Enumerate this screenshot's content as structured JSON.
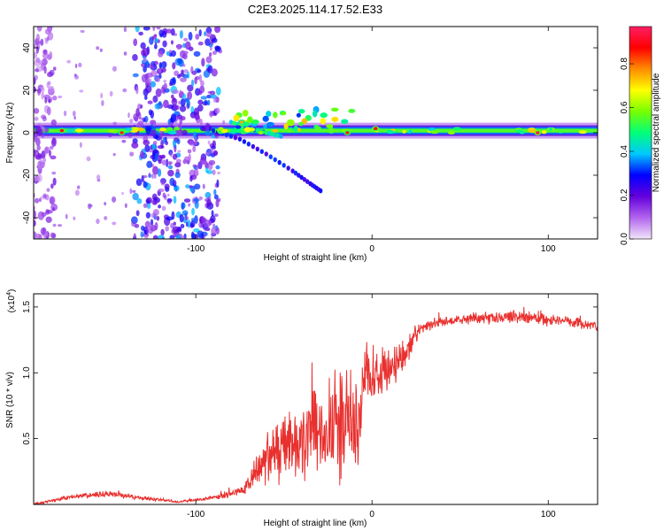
{
  "title": "C2E3.2025.114.17.52.E33",
  "chart_data": [
    {
      "type": "heatmap",
      "xlabel": "Height of straight line (km)",
      "ylabel": "Frequency (Hz)",
      "xlim": [
        -192,
        128
      ],
      "ylim": [
        -50,
        50
      ],
      "xticks": [
        -100,
        0,
        100
      ],
      "xtick_labels": [
        "-100",
        "0",
        "100"
      ],
      "yticks": [
        -40,
        -20,
        0,
        20,
        40
      ],
      "ytick_labels": [
        "-40",
        "-20",
        "0",
        "20",
        "40"
      ],
      "colorbar": {
        "label": "Normalized spectral amplitude",
        "range": [
          0,
          0.97
        ],
        "ticks": [
          0.0,
          0.2,
          0.4,
          0.6,
          0.8
        ],
        "tick_labels": [
          "0.0",
          "0.2",
          "0.4",
          "0.6",
          "0.8"
        ],
        "colors": [
          "#f2e6f9",
          "#b264ee",
          "#6400dc",
          "#0000ff",
          "#00c8ff",
          "#00ff78",
          "#78ff00",
          "#ffff00",
          "#ff8c00",
          "#ff0000",
          "#ff1e64"
        ]
      },
      "main_band": {
        "frequency": 1,
        "x_range": [
          -192,
          128
        ],
        "typical_amplitude": 0.55
      },
      "noise_regions": [
        {
          "x_range": [
            -192,
            -180
          ],
          "amplitude": 0.15
        },
        {
          "x_range": [
            -135,
            -87
          ],
          "amplitude": 0.3
        }
      ],
      "branch_curves": [
        {
          "points": [
            [
              -90,
              1
            ],
            [
              -75,
              -3
            ],
            [
              -60,
              -10
            ],
            [
              -45,
              -18
            ],
            [
              -35,
              -24
            ],
            [
              -28,
              -28
            ]
          ],
          "amplitude": 0.3
        },
        {
          "points": [
            [
              -80,
              5
            ],
            [
              -70,
              2
            ],
            [
              -60,
              0
            ],
            [
              -50,
              -2
            ]
          ],
          "amplitude": 0.45
        }
      ],
      "hot_spots": [
        {
          "x": -176,
          "y": 1,
          "amplitude": 0.9
        },
        {
          "x": -142,
          "y": 0,
          "amplitude": 0.85
        },
        {
          "x": -74,
          "y": 5,
          "amplitude": 0.75
        },
        {
          "x": -14,
          "y": 0,
          "amplitude": 0.85
        },
        {
          "x": 2,
          "y": 2,
          "amplitude": 0.9
        },
        {
          "x": 94,
          "y": 0,
          "amplitude": 0.95
        }
      ]
    },
    {
      "type": "line",
      "xlabel": "Height of straight line (km)",
      "ylabel": "SNR (10 * v/v)",
      "multiplier_label": "(x10",
      "multiplier_exponent": "4",
      "xlim": [
        -192,
        128
      ],
      "ylim": [
        0,
        1.6
      ],
      "xticks": [
        -100,
        0,
        100
      ],
      "xtick_labels": [
        "-100",
        "0",
        "100"
      ],
      "yticks": [
        0.5,
        1.0,
        1.5
      ],
      "ytick_labels": [
        "0.5",
        "1.0",
        "1.5"
      ],
      "series": [
        {
          "color": "#e8302e",
          "x": [
            -192,
            -170,
            -150,
            -130,
            -110,
            -90,
            -80,
            -72,
            -66,
            -60,
            -50,
            -40,
            -30,
            -22,
            -16,
            -12,
            -8,
            -4,
            0,
            6,
            12,
            18,
            24,
            30,
            38,
            50,
            60,
            70,
            80,
            90,
            100,
            110,
            120,
            128
          ],
          "y": [
            0.0,
            0.06,
            0.08,
            0.05,
            0.02,
            0.05,
            0.08,
            0.12,
            0.25,
            0.33,
            0.45,
            0.48,
            0.58,
            0.6,
            0.6,
            0.62,
            0.5,
            1.05,
            0.98,
            1.0,
            1.05,
            1.15,
            1.28,
            1.35,
            1.38,
            1.4,
            1.42,
            1.41,
            1.43,
            1.42,
            1.41,
            1.39,
            1.37,
            1.36
          ],
          "noise_amplitude": [
            0.01,
            0.02,
            0.03,
            0.02,
            0.01,
            0.02,
            0.03,
            0.05,
            0.15,
            0.22,
            0.3,
            0.35,
            0.45,
            0.5,
            0.55,
            0.5,
            0.45,
            0.3,
            0.25,
            0.2,
            0.18,
            0.15,
            0.1,
            0.06,
            0.05,
            0.04,
            0.05,
            0.05,
            0.06,
            0.06,
            0.07,
            0.05,
            0.05,
            0.04
          ]
        }
      ]
    }
  ]
}
